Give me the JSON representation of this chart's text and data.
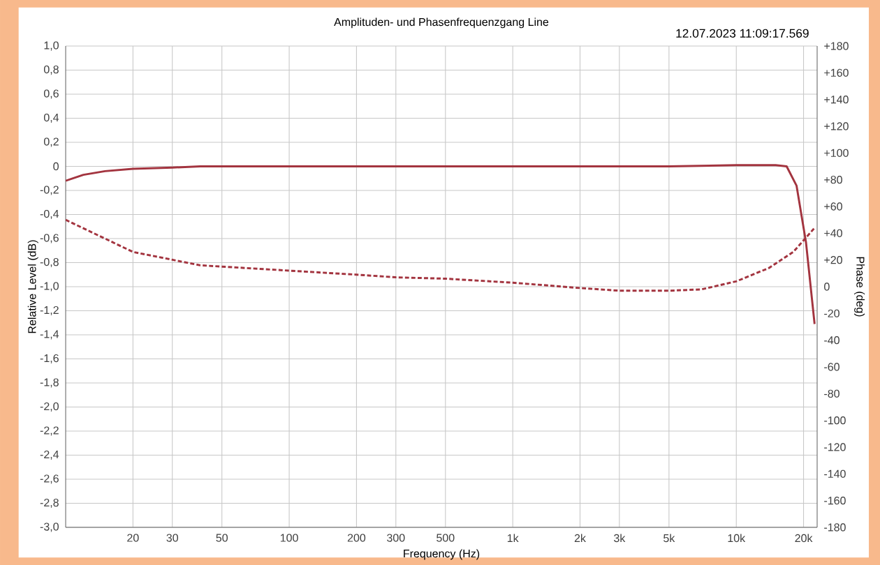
{
  "chart_data": {
    "type": "line",
    "title": "Amplituden- und Phasenfrequenzgang Line",
    "subtitle": "12.07.2023 11:09:17.569",
    "xlabel": "Frequency (Hz)",
    "ylabel": "Relative Level (dB)",
    "y2label": "Phase (deg)",
    "log": "x",
    "grid": true,
    "xlim": [
      10,
      23000
    ],
    "xticks": [
      20,
      30,
      50,
      100,
      200,
      300,
      500,
      {
        "value": 1000,
        "label": "1k"
      },
      {
        "value": 2000,
        "label": "2k"
      },
      {
        "value": 3000,
        "label": "3k"
      },
      {
        "value": 5000,
        "label": "5k"
      },
      {
        "value": 10000,
        "label": "10k"
      },
      {
        "value": 20000,
        "label": "20k"
      }
    ],
    "ylim": [
      -3,
      1
    ],
    "yticks": [
      {
        "value": 1,
        "label": "1,0"
      },
      {
        "value": 0.8,
        "label": "0,8"
      },
      {
        "value": 0.6,
        "label": "0,6"
      },
      {
        "value": 0.4,
        "label": "0,4"
      },
      {
        "value": 0.2,
        "label": "0,2"
      },
      0,
      {
        "value": -0.2,
        "label": "-0,2"
      },
      {
        "value": -0.4,
        "label": "-0,4"
      },
      {
        "value": -0.6,
        "label": "-0,6"
      },
      {
        "value": -0.8,
        "label": "-0,8"
      },
      {
        "value": -1,
        "label": "-1,0"
      },
      {
        "value": -1.2,
        "label": "-1,2"
      },
      {
        "value": -1.4,
        "label": "-1,4"
      },
      {
        "value": -1.6,
        "label": "-1,6"
      },
      {
        "value": -1.8,
        "label": "-1,8"
      },
      {
        "value": -2,
        "label": "-2,0"
      },
      {
        "value": -2.2,
        "label": "-2,2"
      },
      {
        "value": -2.4,
        "label": "-2,4"
      },
      {
        "value": -2.6,
        "label": "-2,6"
      },
      {
        "value": -2.8,
        "label": "-2,8"
      },
      {
        "value": -3,
        "label": "-3,0"
      }
    ],
    "y2lim": [
      -180,
      180
    ],
    "y2ticks": [
      {
        "value": 180,
        "label": "+180"
      },
      {
        "value": 160,
        "label": "+160"
      },
      {
        "value": 140,
        "label": "+140"
      },
      {
        "value": 120,
        "label": "+120"
      },
      {
        "value": 100,
        "label": "+100"
      },
      {
        "value": 80,
        "label": "+80"
      },
      {
        "value": 60,
        "label": "+60"
      },
      {
        "value": 40,
        "label": "+40"
      },
      {
        "value": 20,
        "label": "+20"
      },
      0,
      -20,
      -40,
      -60,
      -80,
      -100,
      -120,
      -140,
      -160,
      -180
    ],
    "series": [
      {
        "color": "#a3343f",
        "line_style": "solid",
        "x": [
          10,
          12,
          15,
          20,
          30,
          40,
          100,
          1000,
          5000,
          10000,
          15000,
          16800,
          18600,
          20500,
          22400
        ],
        "values": [
          -0.12,
          -0.07,
          -0.04,
          -0.02,
          -0.01,
          0,
          0,
          0,
          0,
          0.01,
          0.01,
          0,
          -0.16,
          -0.63,
          -1.31
        ]
      },
      {
        "color": "#a3343f",
        "line_style": "dashed",
        "axis": "y2",
        "x": [
          10,
          20,
          40,
          100,
          200,
          300,
          500,
          1000,
          2000,
          3000,
          5000,
          7000,
          10000,
          14000,
          18000,
          22400
        ],
        "values": [
          50,
          26,
          16,
          12,
          9,
          7,
          6,
          3,
          -1,
          -3,
          -3,
          -2,
          4,
          14,
          26,
          44
        ]
      }
    ]
  }
}
